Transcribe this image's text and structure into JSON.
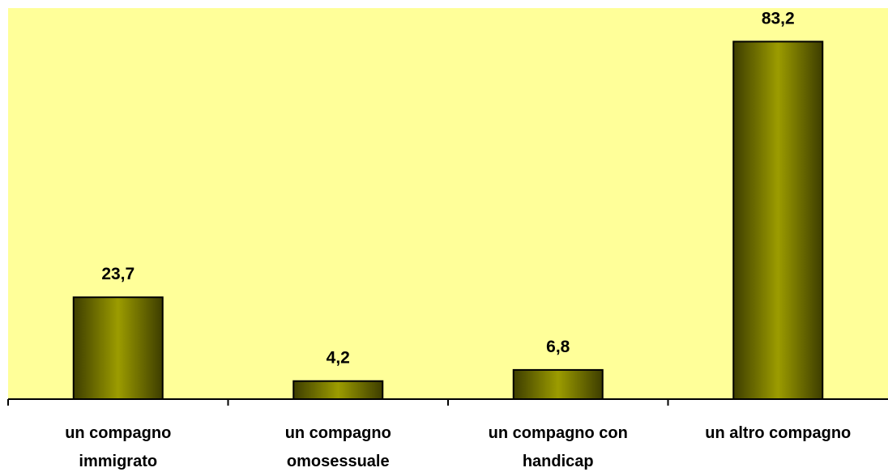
{
  "chart_data": {
    "type": "bar",
    "categories": [
      "un compagno immigrato",
      "un compagno omosessuale",
      "un compagno con handicap",
      "un altro compagno"
    ],
    "values": [
      23.7,
      4.2,
      6.8,
      83.2
    ],
    "value_labels": [
      "23,7",
      "4,2",
      "6,8",
      "83,2"
    ],
    "color": "#808000",
    "ylim": [
      0,
      91
    ]
  }
}
